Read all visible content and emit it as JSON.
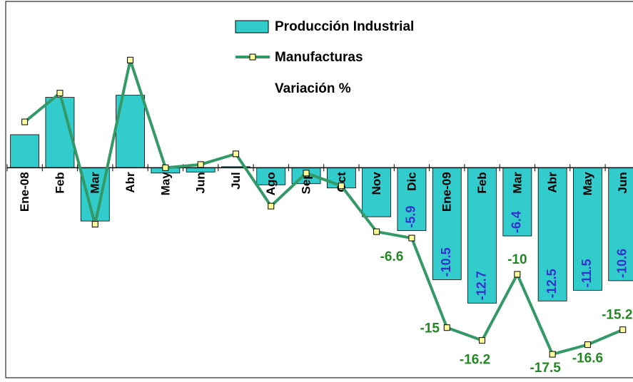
{
  "chart_data": {
    "type": "bar-line",
    "title": "Variación %",
    "categories": [
      "Ene-08",
      "Feb",
      "Mar",
      "Abr",
      "May",
      "Jun",
      "Jul",
      "Ago",
      "Sep",
      "Oct",
      "Nov",
      "Dic",
      "Ene-09",
      "Feb",
      "Mar",
      "Abr",
      "May",
      "Jun"
    ],
    "series": [
      {
        "name": "Producción Industrial",
        "type": "bar",
        "color": "#33cccc",
        "values": [
          3.1,
          6.6,
          -5.0,
          6.8,
          -0.5,
          -0.4,
          0.1,
          -1.6,
          -1.5,
          -1.9,
          -4.6,
          -5.9,
          -10.5,
          -12.7,
          -6.4,
          -12.5,
          -11.5,
          -10.6
        ],
        "value_labels": [
          null,
          null,
          null,
          null,
          null,
          null,
          null,
          null,
          null,
          null,
          null,
          "-5.9",
          "-10.5",
          "-12.7",
          "-6.4",
          "-12.5",
          "-11.5",
          "-10.6"
        ]
      },
      {
        "name": "Manufacturas",
        "type": "line",
        "color": "#339966",
        "values": [
          4.3,
          7.0,
          -5.3,
          10.1,
          0.0,
          0.3,
          1.3,
          -3.6,
          -0.5,
          -1.7,
          -6.0,
          -6.6,
          -15,
          -16.2,
          -10,
          -17.5,
          -16.6,
          -15.2
        ],
        "value_labels": [
          null,
          null,
          null,
          null,
          null,
          null,
          null,
          null,
          null,
          null,
          null,
          "-6.6",
          "-15",
          "-16.2",
          "-10",
          "-17.5",
          "-16.6",
          "-15.2"
        ]
      }
    ],
    "ylim": [
      -19.7,
      15.6
    ],
    "grid": false
  }
}
